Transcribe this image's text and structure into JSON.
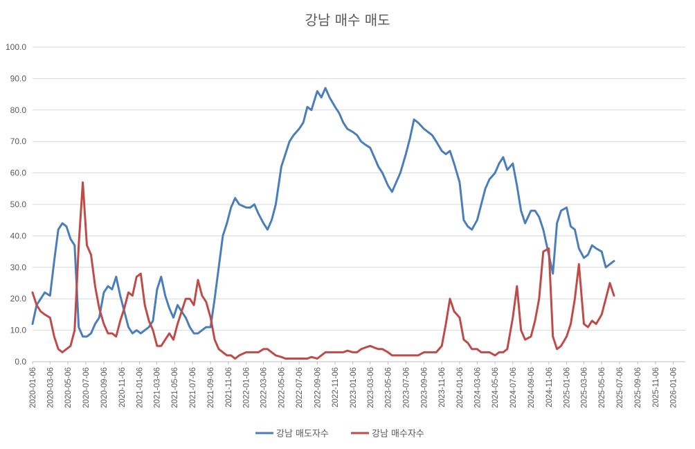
{
  "chart_data": {
    "type": "line",
    "title": "강남 매수 매도",
    "xlabel": "",
    "ylabel": "",
    "ylim": [
      0,
      100
    ],
    "y_ticks": [
      "0.0",
      "10.0",
      "20.0",
      "30.0",
      "40.0",
      "50.0",
      "60.0",
      "70.0",
      "80.0",
      "90.0",
      "100.0"
    ],
    "x_ticks": [
      "2020-01-06",
      "2020-03-06",
      "2020-05-06",
      "2020-07-06",
      "2020-09-06",
      "2020-11-06",
      "2021-01-06",
      "2021-03-06",
      "2021-05-06",
      "2021-07-06",
      "2021-09-06",
      "2021-11-06",
      "2022-01-06",
      "2022-03-06",
      "2022-05-06",
      "2022-07-06",
      "2022-09-06",
      "2022-11-06",
      "2023-01-06",
      "2023-03-06",
      "2023-05-06",
      "2023-07-06",
      "2023-09-06",
      "2023-11-06",
      "2024-01-06",
      "2024-03-06",
      "2024-05-06",
      "2024-07-06",
      "2024-09-06",
      "2024-11-06",
      "2025-01-06",
      "2025-03-06",
      "2025-05-06",
      "2025-07-06",
      "2025-09-06",
      "2025-11-06",
      "2026-01-06"
    ],
    "x_range": [
      "2020-01-06",
      "2026-02-16"
    ],
    "grid": true,
    "legend_position": "bottom",
    "series": [
      {
        "name": "강남 매도자수",
        "color": "#4a7ebb",
        "points": [
          [
            "2020-01-06",
            12
          ],
          [
            "2020-01-20",
            18
          ],
          [
            "2020-02-03",
            20
          ],
          [
            "2020-02-17",
            22
          ],
          [
            "2020-03-06",
            21
          ],
          [
            "2020-03-20",
            32
          ],
          [
            "2020-04-03",
            42
          ],
          [
            "2020-04-17",
            44
          ],
          [
            "2020-05-01",
            43
          ],
          [
            "2020-05-15",
            39
          ],
          [
            "2020-05-29",
            37
          ],
          [
            "2020-06-12",
            11
          ],
          [
            "2020-06-26",
            8
          ],
          [
            "2020-07-10",
            8
          ],
          [
            "2020-07-24",
            9
          ],
          [
            "2020-08-07",
            12
          ],
          [
            "2020-08-21",
            14
          ],
          [
            "2020-09-06",
            22
          ],
          [
            "2020-09-20",
            24
          ],
          [
            "2020-10-04",
            23
          ],
          [
            "2020-10-18",
            27
          ],
          [
            "2020-11-01",
            21
          ],
          [
            "2020-11-15",
            16
          ],
          [
            "2020-11-29",
            11
          ],
          [
            "2020-12-13",
            9
          ],
          [
            "2020-12-27",
            10
          ],
          [
            "2021-01-10",
            9
          ],
          [
            "2021-01-24",
            10
          ],
          [
            "2021-02-07",
            11
          ],
          [
            "2021-02-21",
            13
          ],
          [
            "2021-03-07",
            23
          ],
          [
            "2021-03-21",
            27
          ],
          [
            "2021-04-04",
            21
          ],
          [
            "2021-04-18",
            17
          ],
          [
            "2021-05-02",
            14
          ],
          [
            "2021-05-16",
            18
          ],
          [
            "2021-05-30",
            16
          ],
          [
            "2021-06-13",
            14
          ],
          [
            "2021-06-27",
            11
          ],
          [
            "2021-07-11",
            9
          ],
          [
            "2021-07-25",
            9
          ],
          [
            "2021-08-08",
            10
          ],
          [
            "2021-08-22",
            11
          ],
          [
            "2021-09-06",
            11
          ],
          [
            "2021-09-20",
            20
          ],
          [
            "2021-10-04",
            30
          ],
          [
            "2021-10-18",
            40
          ],
          [
            "2021-11-01",
            44
          ],
          [
            "2021-11-15",
            49
          ],
          [
            "2021-11-29",
            52
          ],
          [
            "2021-12-13",
            50
          ],
          [
            "2022-01-06",
            49
          ],
          [
            "2022-01-20",
            49
          ],
          [
            "2022-02-03",
            50
          ],
          [
            "2022-02-17",
            47
          ],
          [
            "2022-03-06",
            44
          ],
          [
            "2022-03-20",
            42
          ],
          [
            "2022-04-03",
            45
          ],
          [
            "2022-04-17",
            50
          ],
          [
            "2022-05-06",
            62
          ],
          [
            "2022-05-20",
            66
          ],
          [
            "2022-06-03",
            70
          ],
          [
            "2022-06-17",
            72
          ],
          [
            "2022-07-06",
            74
          ],
          [
            "2022-07-20",
            76
          ],
          [
            "2022-08-03",
            81
          ],
          [
            "2022-08-17",
            80
          ],
          [
            "2022-09-06",
            86
          ],
          [
            "2022-09-20",
            84
          ],
          [
            "2022-10-04",
            87
          ],
          [
            "2022-10-18",
            84
          ],
          [
            "2022-11-06",
            81
          ],
          [
            "2022-11-20",
            79
          ],
          [
            "2022-12-04",
            76
          ],
          [
            "2022-12-18",
            74
          ],
          [
            "2023-01-06",
            73
          ],
          [
            "2023-01-20",
            72
          ],
          [
            "2023-02-03",
            70
          ],
          [
            "2023-02-17",
            69
          ],
          [
            "2023-03-06",
            68
          ],
          [
            "2023-03-20",
            65
          ],
          [
            "2023-04-03",
            62
          ],
          [
            "2023-04-17",
            60
          ],
          [
            "2023-05-06",
            56
          ],
          [
            "2023-05-20",
            54
          ],
          [
            "2023-06-03",
            57
          ],
          [
            "2023-06-17",
            60
          ],
          [
            "2023-07-06",
            66
          ],
          [
            "2023-07-20",
            71
          ],
          [
            "2023-08-03",
            77
          ],
          [
            "2023-08-17",
            76
          ],
          [
            "2023-09-06",
            74
          ],
          [
            "2023-09-20",
            73
          ],
          [
            "2023-10-04",
            72
          ],
          [
            "2023-10-18",
            70
          ],
          [
            "2023-11-06",
            67
          ],
          [
            "2023-11-20",
            66
          ],
          [
            "2023-12-04",
            67
          ],
          [
            "2023-12-18",
            63
          ],
          [
            "2024-01-06",
            57
          ],
          [
            "2024-01-20",
            45
          ],
          [
            "2024-02-03",
            43
          ],
          [
            "2024-02-17",
            42
          ],
          [
            "2024-03-06",
            45
          ],
          [
            "2024-03-20",
            50
          ],
          [
            "2024-04-03",
            55
          ],
          [
            "2024-04-17",
            58
          ],
          [
            "2024-05-06",
            60
          ],
          [
            "2024-05-20",
            63
          ],
          [
            "2024-06-03",
            65
          ],
          [
            "2024-06-17",
            61
          ],
          [
            "2024-07-06",
            63
          ],
          [
            "2024-07-20",
            56
          ],
          [
            "2024-08-03",
            48
          ],
          [
            "2024-08-17",
            44
          ],
          [
            "2024-09-06",
            48
          ],
          [
            "2024-09-20",
            48
          ],
          [
            "2024-10-04",
            46
          ],
          [
            "2024-10-18",
            42
          ],
          [
            "2024-11-06",
            34
          ],
          [
            "2024-11-20",
            28
          ],
          [
            "2024-12-04",
            44
          ],
          [
            "2024-12-18",
            48
          ],
          [
            "2025-01-06",
            49
          ],
          [
            "2025-01-20",
            43
          ],
          [
            "2025-02-03",
            42
          ],
          [
            "2025-02-17",
            36
          ],
          [
            "2025-03-06",
            33
          ],
          [
            "2025-03-20",
            34
          ],
          [
            "2025-04-03",
            37
          ],
          [
            "2025-04-17",
            36
          ],
          [
            "2025-05-06",
            35
          ],
          [
            "2025-05-20",
            30
          ],
          [
            "2025-06-03",
            31
          ],
          [
            "2025-06-17",
            32
          ]
        ]
      },
      {
        "name": "강남 매수자수",
        "color": "#be4b48",
        "points": [
          [
            "2020-01-06",
            22
          ],
          [
            "2020-01-20",
            18
          ],
          [
            "2020-02-03",
            16
          ],
          [
            "2020-02-17",
            15
          ],
          [
            "2020-03-06",
            14
          ],
          [
            "2020-03-20",
            8
          ],
          [
            "2020-04-03",
            4
          ],
          [
            "2020-04-17",
            3
          ],
          [
            "2020-05-01",
            4
          ],
          [
            "2020-05-15",
            5
          ],
          [
            "2020-05-29",
            10
          ],
          [
            "2020-06-12",
            37
          ],
          [
            "2020-06-26",
            57
          ],
          [
            "2020-07-10",
            37
          ],
          [
            "2020-07-24",
            34
          ],
          [
            "2020-08-07",
            24
          ],
          [
            "2020-08-21",
            17
          ],
          [
            "2020-09-06",
            12
          ],
          [
            "2020-09-20",
            9
          ],
          [
            "2020-10-04",
            9
          ],
          [
            "2020-10-18",
            8
          ],
          [
            "2020-11-01",
            13
          ],
          [
            "2020-11-15",
            17
          ],
          [
            "2020-11-29",
            22
          ],
          [
            "2020-12-13",
            21
          ],
          [
            "2020-12-27",
            27
          ],
          [
            "2021-01-10",
            28
          ],
          [
            "2021-01-24",
            18
          ],
          [
            "2021-02-07",
            13
          ],
          [
            "2021-02-21",
            10
          ],
          [
            "2021-03-07",
            5
          ],
          [
            "2021-03-21",
            5
          ],
          [
            "2021-04-04",
            7
          ],
          [
            "2021-04-18",
            9
          ],
          [
            "2021-05-02",
            7
          ],
          [
            "2021-05-16",
            12
          ],
          [
            "2021-05-30",
            16
          ],
          [
            "2021-06-13",
            20
          ],
          [
            "2021-06-27",
            20
          ],
          [
            "2021-07-11",
            18
          ],
          [
            "2021-07-25",
            26
          ],
          [
            "2021-08-08",
            21
          ],
          [
            "2021-08-22",
            19
          ],
          [
            "2021-09-06",
            14
          ],
          [
            "2021-09-20",
            7
          ],
          [
            "2021-10-04",
            4
          ],
          [
            "2021-10-18",
            3
          ],
          [
            "2021-11-01",
            2
          ],
          [
            "2021-11-15",
            2
          ],
          [
            "2021-11-29",
            1
          ],
          [
            "2021-12-13",
            2
          ],
          [
            "2022-01-06",
            3
          ],
          [
            "2022-01-20",
            3
          ],
          [
            "2022-02-03",
            3
          ],
          [
            "2022-02-17",
            3
          ],
          [
            "2022-03-06",
            4
          ],
          [
            "2022-03-20",
            4
          ],
          [
            "2022-04-03",
            3
          ],
          [
            "2022-04-17",
            2
          ],
          [
            "2022-05-06",
            1.5
          ],
          [
            "2022-05-20",
            1
          ],
          [
            "2022-06-03",
            1
          ],
          [
            "2022-06-17",
            1
          ],
          [
            "2022-07-06",
            1
          ],
          [
            "2022-07-20",
            1
          ],
          [
            "2022-08-03",
            1
          ],
          [
            "2022-08-17",
            1.5
          ],
          [
            "2022-09-06",
            1
          ],
          [
            "2022-09-20",
            2
          ],
          [
            "2022-10-04",
            3
          ],
          [
            "2022-10-18",
            3
          ],
          [
            "2022-11-06",
            3
          ],
          [
            "2022-11-20",
            3
          ],
          [
            "2022-12-04",
            3
          ],
          [
            "2022-12-18",
            3.5
          ],
          [
            "2023-01-06",
            3
          ],
          [
            "2023-01-20",
            3
          ],
          [
            "2023-02-03",
            4
          ],
          [
            "2023-02-17",
            4.5
          ],
          [
            "2023-03-06",
            5
          ],
          [
            "2023-03-20",
            4.5
          ],
          [
            "2023-04-03",
            4
          ],
          [
            "2023-04-17",
            4
          ],
          [
            "2023-05-06",
            3
          ],
          [
            "2023-05-20",
            2
          ],
          [
            "2023-06-03",
            2
          ],
          [
            "2023-06-17",
            2
          ],
          [
            "2023-07-06",
            2
          ],
          [
            "2023-07-20",
            2
          ],
          [
            "2023-08-03",
            2
          ],
          [
            "2023-08-17",
            2
          ],
          [
            "2023-09-06",
            3
          ],
          [
            "2023-09-20",
            3
          ],
          [
            "2023-10-04",
            3
          ],
          [
            "2023-10-18",
            3
          ],
          [
            "2023-11-06",
            5
          ],
          [
            "2023-11-20",
            12
          ],
          [
            "2023-12-04",
            20
          ],
          [
            "2023-12-18",
            16
          ],
          [
            "2024-01-06",
            14
          ],
          [
            "2024-01-20",
            7
          ],
          [
            "2024-02-03",
            6
          ],
          [
            "2024-02-17",
            4
          ],
          [
            "2024-03-06",
            4
          ],
          [
            "2024-03-20",
            3
          ],
          [
            "2024-04-03",
            3
          ],
          [
            "2024-04-17",
            3
          ],
          [
            "2024-05-06",
            2
          ],
          [
            "2024-05-20",
            3
          ],
          [
            "2024-06-03",
            3
          ],
          [
            "2024-06-17",
            4
          ],
          [
            "2024-07-06",
            14
          ],
          [
            "2024-07-20",
            24
          ],
          [
            "2024-08-03",
            10
          ],
          [
            "2024-08-17",
            7
          ],
          [
            "2024-09-06",
            8
          ],
          [
            "2024-09-20",
            13
          ],
          [
            "2024-10-04",
            20
          ],
          [
            "2024-10-18",
            35
          ],
          [
            "2024-11-06",
            36
          ],
          [
            "2024-11-20",
            8
          ],
          [
            "2024-12-04",
            4
          ],
          [
            "2024-12-18",
            5
          ],
          [
            "2025-01-06",
            8
          ],
          [
            "2025-01-20",
            12
          ],
          [
            "2025-02-03",
            20
          ],
          [
            "2025-02-17",
            31
          ],
          [
            "2025-03-06",
            12
          ],
          [
            "2025-03-20",
            11
          ],
          [
            "2025-04-03",
            13
          ],
          [
            "2025-04-17",
            12
          ],
          [
            "2025-05-06",
            15
          ],
          [
            "2025-05-20",
            20
          ],
          [
            "2025-06-03",
            25
          ],
          [
            "2025-06-17",
            21
          ]
        ]
      }
    ]
  }
}
